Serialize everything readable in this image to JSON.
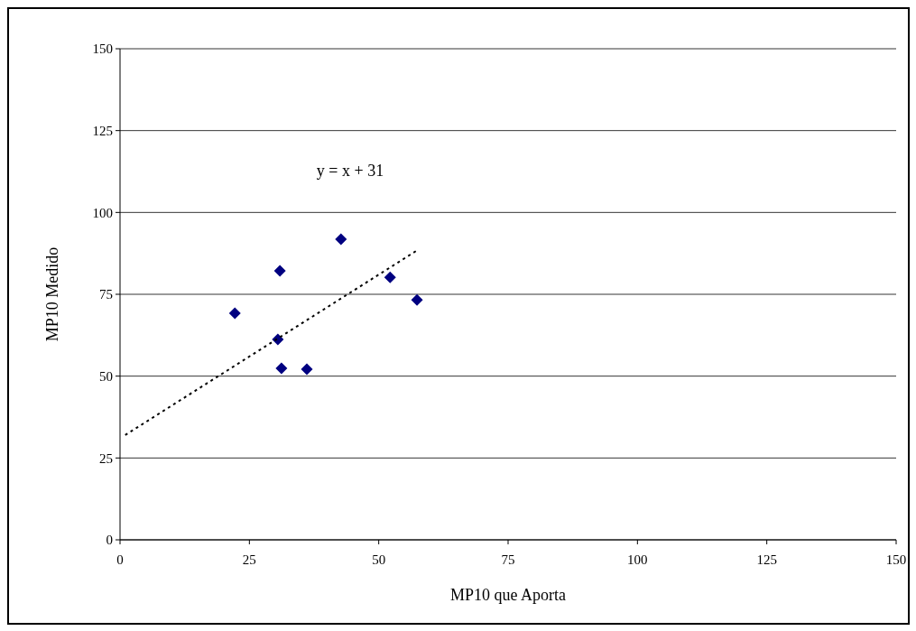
{
  "chart_data": {
    "type": "scatter",
    "xlabel": "MP10 que Aporta",
    "ylabel": "MP10 Medido",
    "xlim": [
      0,
      150
    ],
    "xticks": [
      0,
      25,
      50,
      75,
      100,
      125,
      150
    ],
    "ylim": [
      0,
      150
    ],
    "yticks": [
      0,
      25,
      50,
      75,
      100,
      125,
      150
    ],
    "grid": "y",
    "marker": "diamond",
    "annotations": [
      "y = x + 31"
    ],
    "series": [
      {
        "color": "#000080",
        "x": [
          22.2,
          30.9,
          30.5,
          31.2,
          36.1,
          42.7,
          52.2,
          57.4
        ],
        "values": [
          69.2,
          82.2,
          61.2,
          52.4,
          52.1,
          91.8,
          80.2,
          73.3
        ]
      },
      {
        "type": "line",
        "color": "#000000",
        "line_style": "dotted",
        "marker": "none",
        "x": [
          1,
          57.5
        ],
        "values": [
          32,
          88.5
        ]
      }
    ]
  }
}
